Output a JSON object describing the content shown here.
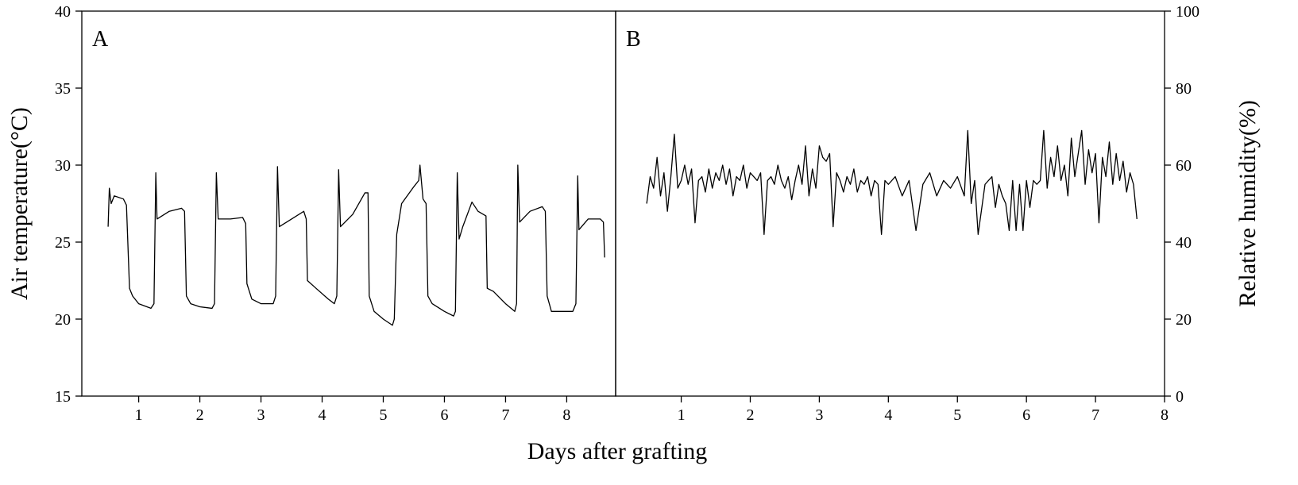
{
  "chart_data": [
    {
      "type": "line",
      "title": "A",
      "ylabel": "Air temperature(°C)",
      "xlabel": "Days after grafting",
      "xlim": [
        0.07,
        8.8
      ],
      "ylim": [
        15,
        40
      ],
      "xticks": [
        1,
        2,
        3,
        4,
        5,
        6,
        7,
        8
      ],
      "yticks": [
        15,
        20,
        25,
        30,
        35,
        40
      ],
      "axis_side": "left",
      "color": "#000000",
      "x": [
        0.5,
        0.52,
        0.55,
        0.6,
        0.75,
        0.8,
        0.85,
        0.9,
        1.0,
        1.2,
        1.25,
        1.28,
        1.3,
        1.5,
        1.7,
        1.75,
        1.78,
        1.85,
        2.0,
        2.2,
        2.24,
        2.27,
        2.3,
        2.5,
        2.7,
        2.75,
        2.77,
        2.85,
        3.0,
        3.2,
        3.24,
        3.27,
        3.3,
        3.5,
        3.7,
        3.74,
        3.76,
        3.9,
        4.1,
        4.2,
        4.24,
        4.27,
        4.3,
        4.5,
        4.7,
        4.75,
        4.77,
        4.85,
        5.0,
        5.15,
        5.18,
        5.22,
        5.3,
        5.5,
        5.58,
        5.6,
        5.65,
        5.7,
        5.73,
        5.8,
        6.0,
        6.15,
        6.18,
        6.21,
        6.24,
        6.3,
        6.45,
        6.55,
        6.68,
        6.7,
        6.8,
        7.0,
        7.15,
        7.18,
        7.2,
        7.23,
        7.4,
        7.6,
        7.65,
        7.68,
        7.75,
        7.9,
        8.1,
        8.15,
        8.18,
        8.2,
        8.35,
        8.55,
        8.6,
        8.62
      ],
      "values": [
        26,
        28.5,
        27.5,
        28,
        27.8,
        27.4,
        22,
        21.5,
        21,
        20.7,
        21,
        29.5,
        26.5,
        27,
        27.2,
        27,
        21.5,
        21,
        20.8,
        20.7,
        21,
        29.5,
        26.5,
        26.5,
        26.6,
        26.2,
        22.3,
        21.3,
        21,
        21,
        21.5,
        29.9,
        26,
        26.5,
        27,
        26.5,
        22.5,
        22,
        21.3,
        21,
        21.5,
        29.7,
        26,
        26.8,
        28.2,
        28.2,
        21.5,
        20.5,
        20,
        19.6,
        20,
        25.5,
        27.5,
        28.6,
        29,
        30,
        27.8,
        27.5,
        21.5,
        21,
        20.5,
        20.2,
        20.5,
        29.5,
        25.2,
        26,
        27.6,
        27,
        26.7,
        22,
        21.8,
        21,
        20.5,
        21,
        30,
        26.3,
        27,
        27.3,
        27,
        21.5,
        20.5,
        20.5,
        20.5,
        21,
        29.3,
        25.8,
        26.5,
        26.5,
        26.3,
        24
      ]
    },
    {
      "type": "line",
      "title": "B",
      "ylabel": "Relative humidity(%)",
      "xlim": [
        0.05,
        8
      ],
      "ylim": [
        0,
        100
      ],
      "xticks": [
        1,
        2,
        3,
        4,
        5,
        6,
        7,
        8
      ],
      "yticks": [
        0,
        20,
        40,
        60,
        80,
        100
      ],
      "axis_side": "right",
      "color": "#000000",
      "x": [
        0.5,
        0.55,
        0.6,
        0.65,
        0.7,
        0.75,
        0.8,
        0.85,
        0.9,
        0.95,
        1.0,
        1.05,
        1.1,
        1.15,
        1.2,
        1.25,
        1.3,
        1.35,
        1.4,
        1.45,
        1.5,
        1.55,
        1.6,
        1.65,
        1.7,
        1.75,
        1.8,
        1.85,
        1.9,
        1.95,
        2.0,
        2.05,
        2.1,
        2.15,
        2.2,
        2.25,
        2.3,
        2.35,
        2.4,
        2.45,
        2.5,
        2.55,
        2.6,
        2.65,
        2.7,
        2.75,
        2.8,
        2.85,
        2.9,
        2.95,
        3.0,
        3.05,
        3.1,
        3.15,
        3.2,
        3.25,
        3.3,
        3.35,
        3.4,
        3.45,
        3.5,
        3.55,
        3.6,
        3.65,
        3.7,
        3.75,
        3.8,
        3.85,
        3.9,
        3.95,
        4.0,
        4.1,
        4.2,
        4.3,
        4.4,
        4.5,
        4.6,
        4.7,
        4.8,
        4.9,
        5.0,
        5.1,
        5.15,
        5.2,
        5.25,
        5.3,
        5.4,
        5.5,
        5.55,
        5.6,
        5.65,
        5.7,
        5.75,
        5.8,
        5.85,
        5.9,
        5.95,
        6.0,
        6.05,
        6.1,
        6.15,
        6.2,
        6.25,
        6.3,
        6.35,
        6.4,
        6.45,
        6.5,
        6.55,
        6.6,
        6.65,
        6.7,
        6.75,
        6.8,
        6.85,
        6.9,
        6.95,
        7.0,
        7.05,
        7.1,
        7.15,
        7.2,
        7.25,
        7.3,
        7.35,
        7.4,
        7.45,
        7.5,
        7.55,
        7.6
      ],
      "values": [
        50,
        57,
        54,
        62,
        52,
        58,
        48,
        57,
        68,
        54,
        56,
        60,
        55,
        59,
        45,
        56,
        57,
        53,
        59,
        54,
        58,
        56,
        60,
        55,
        59,
        52,
        57,
        56,
        60,
        54,
        58,
        57,
        56,
        58,
        42,
        56,
        57,
        55,
        60,
        56,
        54,
        57,
        51,
        56,
        60,
        55,
        65,
        52,
        59,
        54,
        65,
        62,
        61,
        63,
        44,
        58,
        56,
        53,
        57,
        55,
        59,
        53,
        56,
        55,
        57,
        52,
        56,
        55,
        42,
        56,
        55,
        57,
        52,
        56,
        43,
        55,
        58,
        52,
        56,
        54,
        57,
        52,
        69,
        50,
        56,
        42,
        55,
        57,
        49,
        55,
        52,
        50,
        43,
        56,
        43,
        55,
        43,
        56,
        49,
        56,
        55,
        56,
        69,
        54,
        62,
        57,
        65,
        56,
        60,
        52,
        67,
        57,
        63,
        69,
        55,
        64,
        58,
        63,
        45,
        62,
        57,
        66,
        55,
        63,
        56,
        61,
        53,
        58,
        55,
        46
      ]
    }
  ]
}
